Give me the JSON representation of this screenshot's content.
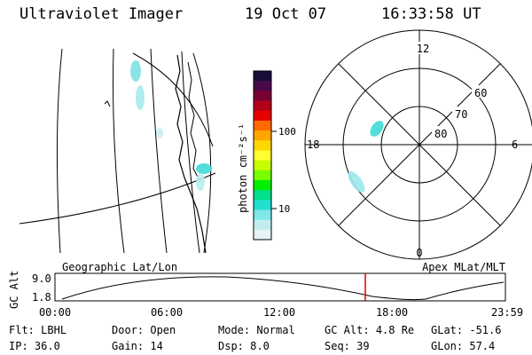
{
  "header": {
    "instrument": "Ultraviolet Imager",
    "date": "19 Oct 07",
    "time": "16:33:58 UT"
  },
  "colorbar": {
    "label": "photon cm⁻²s⁻¹",
    "ticks": [
      "100",
      "10"
    ],
    "colors": [
      "#1a0d3a",
      "#4a0a4a",
      "#7a0033",
      "#b3001a",
      "#e60000",
      "#ff6a00",
      "#ffa500",
      "#ffd700",
      "#ffff33",
      "#c8ff00",
      "#7aff00",
      "#00f000",
      "#00e08a",
      "#20e0d0",
      "#80e8e8",
      "#c0eef0",
      "#e6f4f8"
    ]
  },
  "polar": {
    "mlt_labels": {
      "top": "12",
      "left": "18",
      "right": "6",
      "bottom": "0"
    },
    "lat_labels": [
      "60",
      "70",
      "80"
    ]
  },
  "timeline": {
    "ylabel": "GC Alt",
    "yticks": [
      "9.0",
      "1.8"
    ],
    "left_label": "Geographic Lat/Lon",
    "right_label": "Apex MLat/MLT",
    "xticks": [
      "00:00",
      "06:00",
      "12:00",
      "18:00",
      "23:59"
    ],
    "marker_time": "16:33:58"
  },
  "info": {
    "row1": [
      {
        "key": "Flt:",
        "value": "LBHL"
      },
      {
        "key": "Door:",
        "value": "Open"
      },
      {
        "key": "Mode:",
        "value": "Normal"
      },
      {
        "key": "GC Alt:",
        "value": "4.8 Re"
      },
      {
        "key": "GLat:",
        "value": "-51.6"
      }
    ],
    "row2": [
      {
        "key": "IP:",
        "value": "36.0"
      },
      {
        "key": "Gain:",
        "value": "14"
      },
      {
        "key": "Dsp:",
        "value": "8.0"
      },
      {
        "key": "Seq:",
        "value": "39"
      },
      {
        "key": "GLon:",
        "value": "57.4"
      }
    ]
  }
}
